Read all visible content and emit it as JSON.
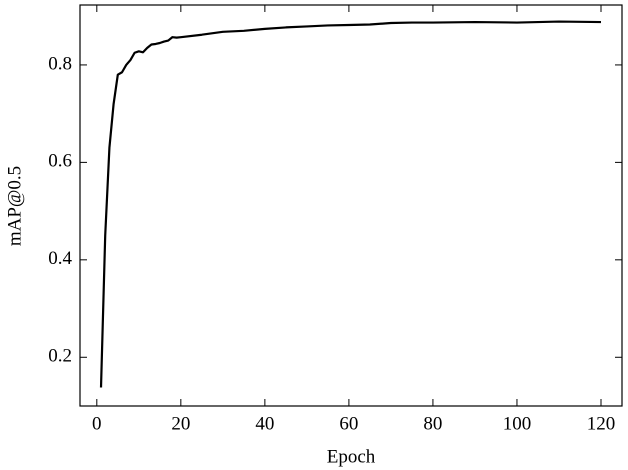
{
  "chart_data": {
    "type": "line",
    "xlabel": "Epoch",
    "ylabel": "mAP@0.5",
    "x": [
      1,
      2,
      3,
      4,
      5,
      6,
      7,
      8,
      9,
      10,
      11,
      12,
      13,
      14,
      15,
      16,
      17,
      18,
      19,
      20,
      25,
      30,
      35,
      40,
      45,
      50,
      55,
      60,
      65,
      70,
      75,
      80,
      90,
      100,
      110,
      120
    ],
    "series": [
      {
        "color": "#000000",
        "values": [
          0.138,
          0.45,
          0.63,
          0.72,
          0.78,
          0.785,
          0.8,
          0.81,
          0.825,
          0.828,
          0.826,
          0.835,
          0.842,
          0.843,
          0.845,
          0.848,
          0.85,
          0.857,
          0.856,
          0.857,
          0.862,
          0.868,
          0.87,
          0.874,
          0.877,
          0.879,
          0.881,
          0.882,
          0.883,
          0.886,
          0.887,
          0.887,
          0.888,
          0.887,
          0.889,
          0.888
        ]
      }
    ],
    "xlim": [
      -4,
      125
    ],
    "xticks": [
      0,
      20,
      40,
      60,
      80,
      100,
      120
    ],
    "ylim": [
      0.1,
      0.923
    ],
    "yticks": [
      0.2,
      0.4,
      0.6,
      0.8
    ],
    "grid": false
  }
}
